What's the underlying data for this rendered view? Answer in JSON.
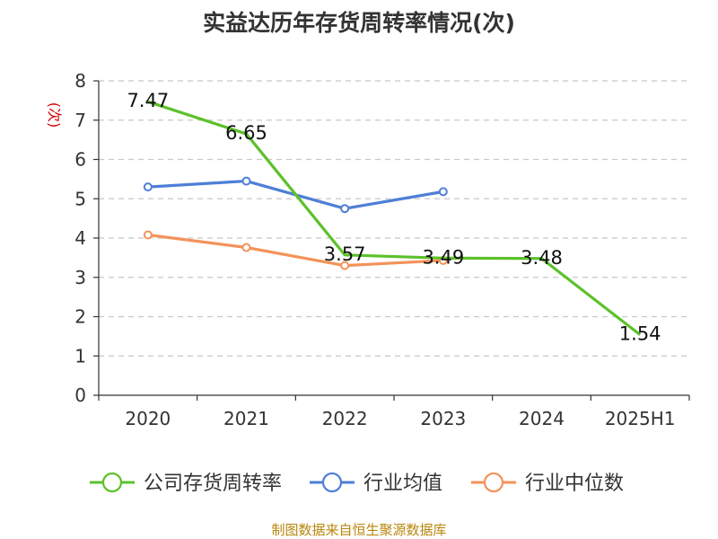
{
  "chart_data": {
    "type": "line",
    "title": "实益达历年存货周转率情况(次)",
    "ylabel": "(次)",
    "categories": [
      "2020",
      "2021",
      "2022",
      "2023",
      "2024",
      "2025H1"
    ],
    "ylim": [
      0,
      8
    ],
    "yticks": [
      0,
      1,
      2,
      3,
      4,
      5,
      6,
      7,
      8
    ],
    "grid": true,
    "legend_position": "bottom",
    "series": [
      {
        "name": "公司存货周转率",
        "color": "#5cc12a",
        "values": [
          7.47,
          6.65,
          3.57,
          3.49,
          3.48,
          1.54
        ],
        "labels": [
          "7.47",
          "6.65",
          "3.57",
          "3.49",
          "3.48",
          "1.54"
        ]
      },
      {
        "name": "行业均值",
        "color": "#4e7fd6",
        "values": [
          5.3,
          5.45,
          4.75,
          5.18,
          null,
          null
        ]
      },
      {
        "name": "行业中位数",
        "color": "#f3935a",
        "values": [
          4.08,
          3.76,
          3.3,
          3.43,
          null,
          null
        ]
      }
    ]
  },
  "source_note": "制图数据来自恒生聚源数据库"
}
